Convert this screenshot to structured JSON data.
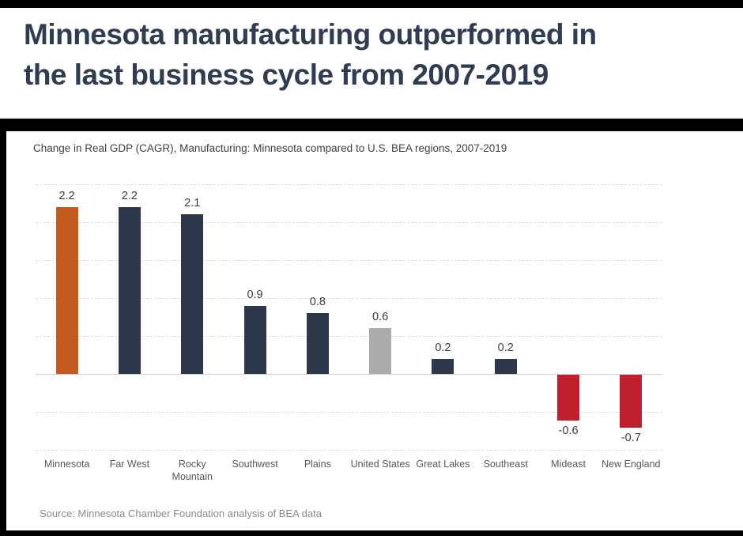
{
  "page": {
    "title_lines": [
      "Minnesota manufacturing outperformed in",
      "the last business cycle from 2007-2019"
    ],
    "title_color": "#2F3C52"
  },
  "chart": {
    "subtitle": "Change in Real GDP (CAGR), Manufacturing: Minnesota compared to U.S. BEA regions, 2007-2019",
    "source": "Source: Minnesota Chamber Foundation analysis of BEA data"
  },
  "chart_data": {
    "type": "bar",
    "title": "Change in Real GDP (CAGR), Manufacturing: Minnesota compared to U.S. BEA regions, 2007-2019",
    "categories": [
      "Minnesota",
      "Far West",
      "Rocky Mountain",
      "Southwest",
      "Plains",
      "United States",
      "Great Lakes",
      "Southeast",
      "Mideast",
      "New England"
    ],
    "values": [
      2.2,
      2.2,
      2.1,
      0.9,
      0.8,
      0.6,
      0.2,
      0.2,
      -0.6,
      -0.7
    ],
    "value_labels": [
      "2.2",
      "2.2",
      "2.1",
      "0.9",
      "0.8",
      "0.6",
      "0.2",
      "0.2",
      "-0.6",
      "-0.7"
    ],
    "bar_colors": [
      "#C25A1E",
      "#2D394B",
      "#2D394B",
      "#2D394B",
      "#2D394B",
      "#ABABAB",
      "#2D394B",
      "#2D394B",
      "#C01F2D",
      "#C01F2D"
    ],
    "xlabel": "",
    "ylabel": "",
    "ylim": [
      -1.0,
      2.5
    ],
    "grid_step": 0.5,
    "grid": "on",
    "gridline_style": "dashed",
    "zero_line": "solid",
    "legend": "none",
    "y_tick_labels": "none",
    "colors": {
      "highlight_orange": "#C25A1E",
      "region_navy": "#2D394B",
      "us_gray": "#ABABAB",
      "negative_red": "#C01F2D",
      "gridline": "#DCDCDC"
    }
  }
}
